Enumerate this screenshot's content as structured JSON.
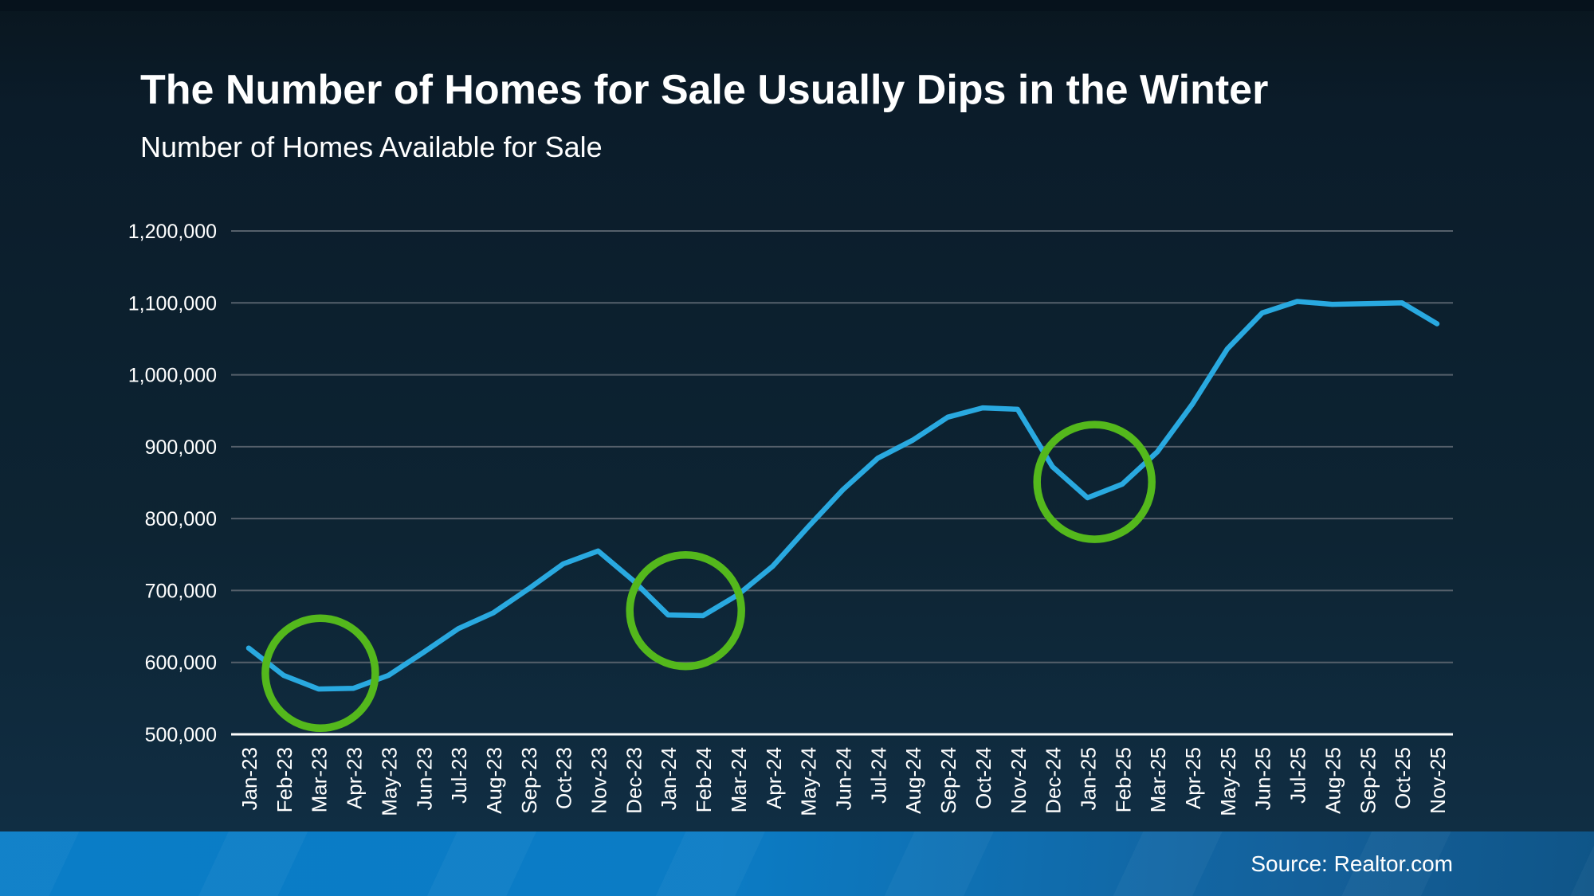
{
  "header": {
    "title": "The Number of Homes for Sale Usually Dips in the Winter",
    "subtitle": "Number of Homes Available for Sale"
  },
  "footer": {
    "source": "Source: Realtor.com"
  },
  "chart_data": {
    "type": "line",
    "title": "The Number of Homes for Sale Usually Dips in the Winter",
    "subtitle": "Number of Homes Available for Sale",
    "xlabel": "",
    "ylabel": "",
    "grid": "horizontal",
    "legend_position": "none",
    "ylim": [
      500000,
      1200000
    ],
    "yticks": [
      {
        "value": 500000,
        "label": "500,000"
      },
      {
        "value": 600000,
        "label": "600,000"
      },
      {
        "value": 700000,
        "label": "700,000"
      },
      {
        "value": 800000,
        "label": "800,000"
      },
      {
        "value": 900000,
        "label": "900,000"
      },
      {
        "value": 1000000,
        "label": "1,000,000"
      },
      {
        "value": 1100000,
        "label": "1,100,000"
      },
      {
        "value": 1200000,
        "label": "1,200,000"
      }
    ],
    "categories": [
      "Jan-23",
      "Feb-23",
      "Mar-23",
      "Apr-23",
      "May-23",
      "Jun-23",
      "Jul-23",
      "Aug-23",
      "Sep-23",
      "Oct-23",
      "Nov-23",
      "Dec-23",
      "Jan-24",
      "Feb-24",
      "Mar-24",
      "Apr-24",
      "May-24",
      "Jun-24",
      "Jul-24",
      "Aug-24",
      "Sep-24",
      "Oct-24",
      "Nov-24",
      "Dec-24",
      "Jan-25",
      "Feb-25",
      "Mar-25",
      "Apr-25",
      "May-25",
      "Jun-25",
      "Jul-25",
      "Aug-25",
      "Sep-25",
      "Oct-25",
      "Nov-25"
    ],
    "series": [
      {
        "name": "Number of Homes Available for Sale",
        "values": [
          620000,
          582000,
          563000,
          564000,
          582000,
          614000,
          647000,
          669000,
          702000,
          737000,
          755000,
          714000,
          666000,
          665000,
          694000,
          734000,
          788000,
          840000,
          884000,
          909000,
          941000,
          954000,
          952000,
          872000,
          829000,
          848000,
          893000,
          959000,
          1036000,
          1086000,
          1102000,
          1098000,
          1099000,
          1100000,
          1071000
        ]
      }
    ],
    "annotations": [
      {
        "type": "circle",
        "label": "winter-dip-2023",
        "center_month": "Mar-23",
        "center_month_index": 2.05,
        "center_value": 585000,
        "radius_px": 69
      },
      {
        "type": "circle",
        "label": "winter-dip-2024",
        "center_month": "Jan-24",
        "center_month_index": 12.5,
        "center_value": 672000,
        "radius_px": 70
      },
      {
        "type": "circle",
        "label": "winter-dip-2025",
        "center_month": "Jan-25",
        "center_month_index": 24.2,
        "center_value": 851000,
        "radius_px": 72
      }
    ],
    "colors": {
      "line": "#29a9e0",
      "annotation_circle": "#54b81c",
      "gridline": "#55606b",
      "axis_line": "#ffffff",
      "tick_label": "#ffffff"
    }
  }
}
